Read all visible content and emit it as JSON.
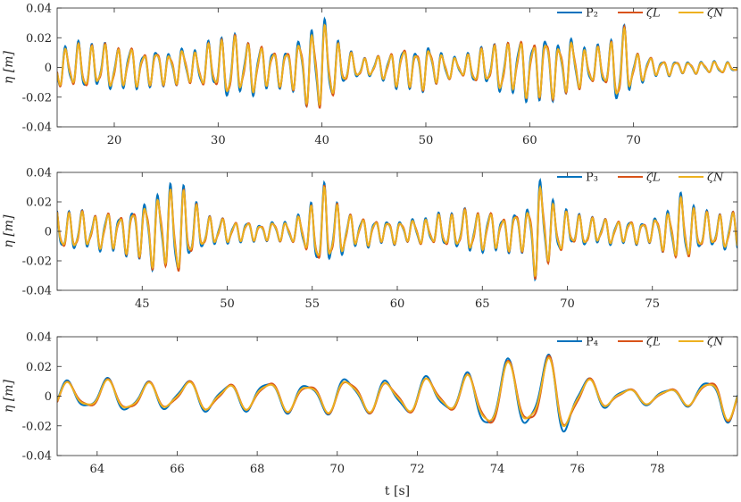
{
  "chart_data": [
    {
      "type": "line",
      "ylabel": "η [m]",
      "xlabel": "",
      "xlim": [
        14.5,
        80
      ],
      "ylim": [
        -0.04,
        0.04
      ],
      "xticks": [
        20,
        30,
        40,
        50,
        60,
        70
      ],
      "yticks": [
        -0.04,
        -0.02,
        0,
        0.02,
        0.04
      ],
      "xtick_labels": [
        "20",
        "30",
        "40",
        "50",
        "60",
        "70"
      ],
      "ytick_labels": [
        "-0.04",
        "-0.02",
        "0",
        "0.02",
        "0.04"
      ],
      "legend_placement": "top-right",
      "series": [
        {
          "name": "P₂",
          "color": "#0072BD"
        },
        {
          "name": "ζL",
          "color": "#D95319"
        },
        {
          "name": "ζN",
          "color": "#EDB120"
        }
      ],
      "signal": {
        "period": 1.25,
        "envelope": [
          [
            14.5,
            0.012
          ],
          [
            16,
            0.016
          ],
          [
            20,
            0.015
          ],
          [
            24,
            0.012
          ],
          [
            28,
            0.012
          ],
          [
            31,
            0.022
          ],
          [
            33,
            0.018
          ],
          [
            36,
            0.012
          ],
          [
            38,
            0.02
          ],
          [
            39.7,
            0.034
          ],
          [
            41,
            0.022
          ],
          [
            43,
            0.008
          ],
          [
            45,
            0.006
          ],
          [
            47,
            0.013
          ],
          [
            50,
            0.015
          ],
          [
            53,
            0.006
          ],
          [
            55,
            0.012
          ],
          [
            58,
            0.018
          ],
          [
            61,
            0.022
          ],
          [
            64,
            0.018
          ],
          [
            66,
            0.012
          ],
          [
            67.5,
            0.015
          ],
          [
            68.8,
            0.03
          ],
          [
            70,
            0.012
          ],
          [
            72,
            0.006
          ],
          [
            75,
            0.004
          ],
          [
            78,
            0.004
          ],
          [
            80,
            0.003
          ]
        ]
      }
    },
    {
      "type": "line",
      "ylabel": "η [m]",
      "xlabel": "",
      "xlim": [
        40,
        80
      ],
      "ylim": [
        -0.04,
        0.04
      ],
      "xticks": [
        45,
        50,
        55,
        60,
        65,
        70,
        75
      ],
      "yticks": [
        -0.04,
        -0.02,
        0,
        0.02,
        0.04
      ],
      "xtick_labels": [
        "45",
        "50",
        "55",
        "60",
        "65",
        "70",
        "75"
      ],
      "ytick_labels": [
        "-0.04",
        "-0.02",
        "0",
        "0.02",
        "0.04"
      ],
      "legend_placement": "top-right",
      "series": [
        {
          "name": "P₃",
          "color": "#0072BD"
        },
        {
          "name": "ζL",
          "color": "#D95319"
        },
        {
          "name": "ζN",
          "color": "#EDB120"
        }
      ],
      "signal": {
        "period": 0.75,
        "envelope": [
          [
            40,
            0.015
          ],
          [
            42,
            0.012
          ],
          [
            44,
            0.014
          ],
          [
            46.5,
            0.03
          ],
          [
            47.5,
            0.03
          ],
          [
            48.5,
            0.012
          ],
          [
            50,
            0.008
          ],
          [
            52,
            0.006
          ],
          [
            54,
            0.008
          ],
          [
            55.8,
            0.03
          ],
          [
            57,
            0.012
          ],
          [
            59,
            0.008
          ],
          [
            61,
            0.008
          ],
          [
            63,
            0.012
          ],
          [
            64.5,
            0.015
          ],
          [
            66,
            0.012
          ],
          [
            67.5,
            0.015
          ],
          [
            68.3,
            0.036
          ],
          [
            69.5,
            0.015
          ],
          [
            71,
            0.01
          ],
          [
            73,
            0.008
          ],
          [
            75,
            0.008
          ],
          [
            76.8,
            0.024
          ],
          [
            78,
            0.012
          ],
          [
            80,
            0.013
          ]
        ]
      }
    },
    {
      "type": "line",
      "ylabel": "η [m]",
      "xlabel": "t [s]",
      "xlim": [
        63,
        80
      ],
      "ylim": [
        -0.04,
        0.04
      ],
      "xticks": [
        64,
        66,
        68,
        70,
        72,
        74,
        76,
        78
      ],
      "yticks": [
        -0.04,
        -0.02,
        0,
        0.02,
        0.04
      ],
      "xtick_labels": [
        "64",
        "66",
        "68",
        "70",
        "72",
        "74",
        "76",
        "78"
      ],
      "ytick_labels": [
        "-0.04",
        "-0.02",
        "0",
        "0.02",
        "0.04"
      ],
      "legend_placement": "top-right",
      "series": [
        {
          "name": "P₄",
          "color": "#0072BD"
        },
        {
          "name": "ζL",
          "color": "#D95319"
        },
        {
          "name": "ζN",
          "color": "#EDB120"
        }
      ],
      "signal": {
        "period": 1.0,
        "envelope": [
          [
            63,
            0.01
          ],
          [
            64,
            0.011
          ],
          [
            66,
            0.01
          ],
          [
            68,
            0.01
          ],
          [
            70,
            0.012
          ],
          [
            72,
            0.012
          ],
          [
            73,
            0.012
          ],
          [
            73.8,
            0.025
          ],
          [
            74.3,
            0.022
          ],
          [
            75,
            0.03
          ],
          [
            75.5,
            0.028
          ],
          [
            76,
            0.015
          ],
          [
            77,
            0.006
          ],
          [
            78,
            0.005
          ],
          [
            79,
            0.008
          ],
          [
            79.6,
            0.018
          ],
          [
            80,
            0.012
          ]
        ]
      }
    }
  ]
}
